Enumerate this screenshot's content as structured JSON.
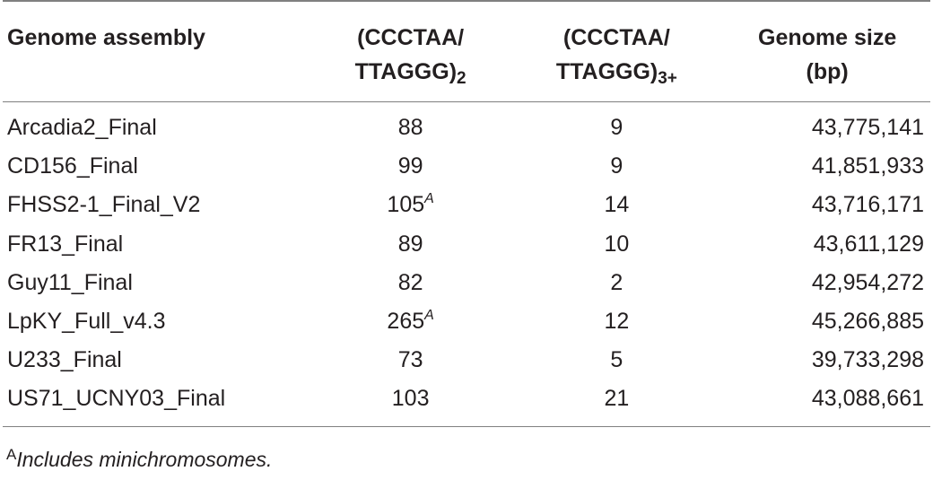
{
  "table": {
    "headers": {
      "assembly": "Genome assembly",
      "two_repeats_line1": "(CCCTAA/",
      "two_repeats_line2": "TTAGGG)",
      "two_repeats_sub": "2",
      "three_repeats_line1": "(CCCTAA/",
      "three_repeats_line2": "TTAGGG)",
      "three_repeats_sub": "3+",
      "size_line1": "Genome size",
      "size_line2": "(bp)"
    },
    "rows": [
      {
        "assembly": "Arcadia2_Final",
        "two": "88",
        "two_note": "",
        "three": "9",
        "size": "43,775,141"
      },
      {
        "assembly": "CD156_Final",
        "two": "99",
        "two_note": "",
        "three": "9",
        "size": "41,851,933"
      },
      {
        "assembly": "FHSS2-1_Final_V2",
        "two": "105",
        "two_note": "A",
        "three": "14",
        "size": "43,716,171"
      },
      {
        "assembly": "FR13_Final",
        "two": "89",
        "two_note": "",
        "three": "10",
        "size": "43,611,129"
      },
      {
        "assembly": "Guy11_Final",
        "two": "82",
        "two_note": "",
        "three": "2",
        "size": "42,954,272"
      },
      {
        "assembly": "LpKY_Full_v4.3",
        "two": "265",
        "two_note": "A",
        "three": "12",
        "size": "45,266,885"
      },
      {
        "assembly": "U233_Final",
        "two": "73",
        "two_note": "",
        "three": "5",
        "size": "39,733,298"
      },
      {
        "assembly": "US71_UCNY03_Final",
        "two": "103",
        "two_note": "",
        "three": "21",
        "size": "43,088,661"
      }
    ]
  },
  "footnote": {
    "mark": "A",
    "text": "Includes minichromosomes."
  }
}
